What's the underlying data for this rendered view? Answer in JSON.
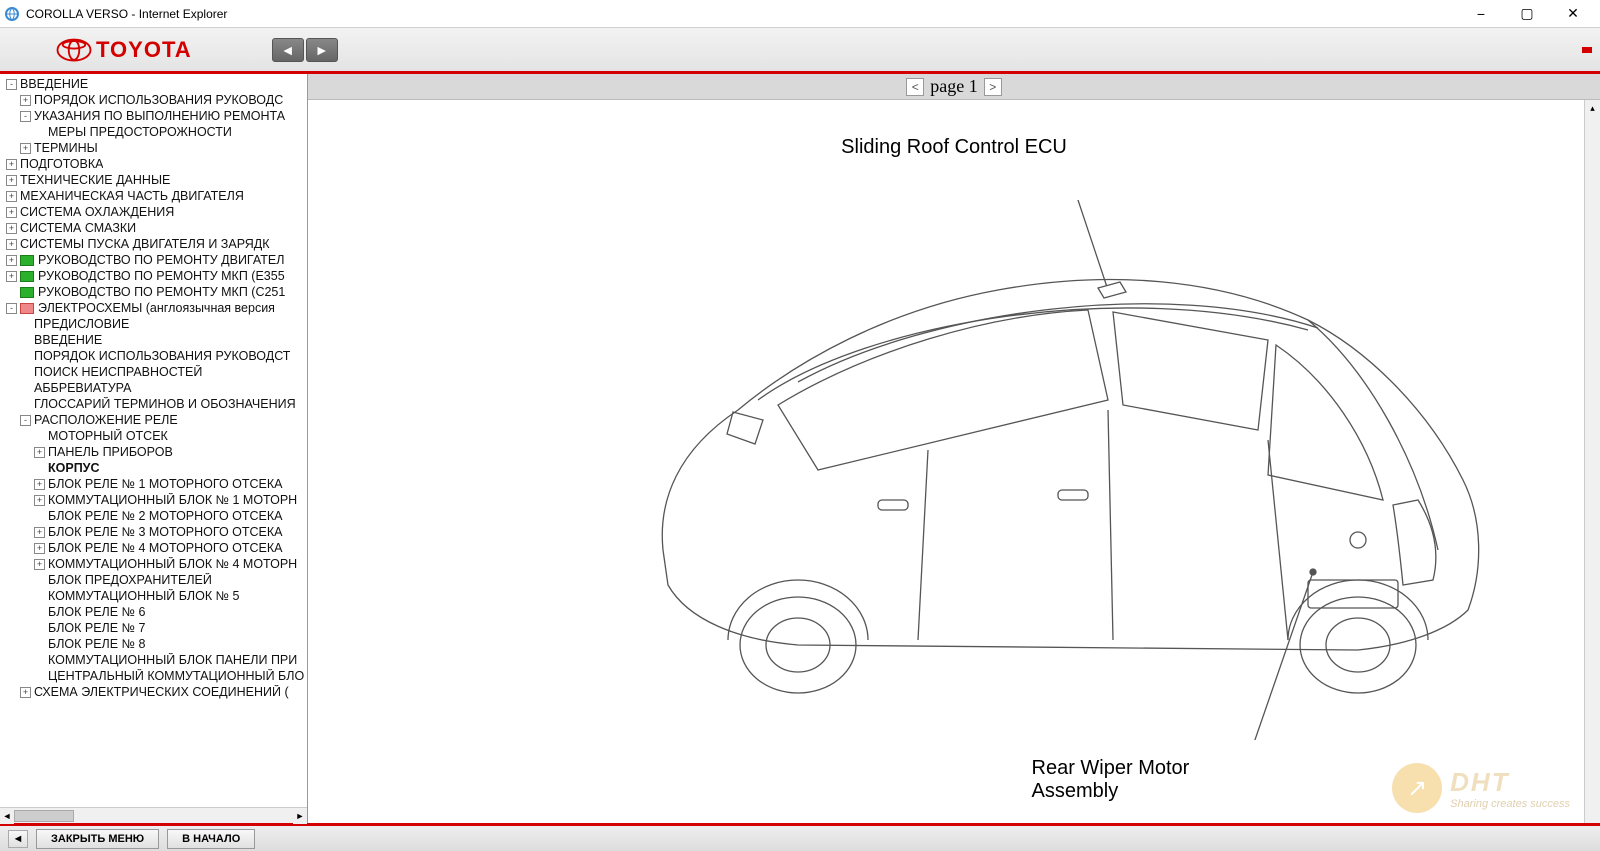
{
  "window": {
    "title": "COROLLA VERSO - Internet Explorer"
  },
  "brand": {
    "name": "TOYOTA"
  },
  "pager": {
    "label": "page 1",
    "prev": "<",
    "next": ">"
  },
  "diagram": {
    "callout_top": "Sliding Roof Control ECU",
    "callout_bottom_l1": "Rear Wiper Motor",
    "callout_bottom_l2": "Assembly",
    "stroke": "#555555",
    "label_fontsize": 20
  },
  "tree": [
    {
      "lvl": 0,
      "tog": "-",
      "label": "ВВЕДЕНИЕ"
    },
    {
      "lvl": 1,
      "tog": "+",
      "label": "ПОРЯДОК ИСПОЛЬЗОВАНИЯ РУКОВОДС"
    },
    {
      "lvl": 1,
      "tog": "-",
      "label": "УКАЗАНИЯ ПО ВЫПОЛНЕНИЮ РЕМОНТА"
    },
    {
      "lvl": 2,
      "tog": " ",
      "label": "МЕРЫ ПРЕДОСТОРОЖНОСТИ"
    },
    {
      "lvl": 1,
      "tog": "+",
      "label": "ТЕРМИНЫ"
    },
    {
      "lvl": 0,
      "tog": "+",
      "label": "ПОДГОТОВКА"
    },
    {
      "lvl": 0,
      "tog": "+",
      "label": "ТЕХНИЧЕСКИЕ ДАННЫЕ"
    },
    {
      "lvl": 0,
      "tog": "+",
      "label": "МЕХАНИЧЕСКАЯ ЧАСТЬ ДВИГАТЕЛЯ"
    },
    {
      "lvl": 0,
      "tog": "+",
      "label": "СИСТЕМА ОХЛАЖДЕНИЯ"
    },
    {
      "lvl": 0,
      "tog": "+",
      "label": "СИСТЕМА СМАЗКИ"
    },
    {
      "lvl": 0,
      "tog": "+",
      "label": "СИСТЕМЫ ПУСКА ДВИГАТЕЛЯ И ЗАРЯДК"
    },
    {
      "lvl": 0,
      "tog": "+",
      "icon": "green",
      "label": "РУКОВОДСТВО ПО РЕМОНТУ ДВИГАТЕЛ"
    },
    {
      "lvl": 0,
      "tog": "+",
      "icon": "green",
      "label": "РУКОВОДСТВО ПО РЕМОНТУ МКП (E355"
    },
    {
      "lvl": 0,
      "tog": " ",
      "icon": "green",
      "label": "РУКОВОДСТВО ПО РЕМОНТУ МКП (C251"
    },
    {
      "lvl": 0,
      "tog": "-",
      "icon": "red",
      "label": "ЭЛЕКТРОСХЕМЫ (англоязычная версия"
    },
    {
      "lvl": 1,
      "tog": " ",
      "label": "ПРЕДИСЛОВИЕ"
    },
    {
      "lvl": 1,
      "tog": " ",
      "label": "ВВЕДЕНИЕ"
    },
    {
      "lvl": 1,
      "tog": " ",
      "label": "ПОРЯДОК ИСПОЛЬЗОВАНИЯ РУКОВОДСТ"
    },
    {
      "lvl": 1,
      "tog": " ",
      "label": "ПОИСК НЕИСПРАВНОСТЕЙ"
    },
    {
      "lvl": 1,
      "tog": " ",
      "label": "АББРЕВИАТУРА"
    },
    {
      "lvl": 1,
      "tog": " ",
      "label": "ГЛОССАРИЙ ТЕРМИНОВ И ОБОЗНАЧЕНИЯ"
    },
    {
      "lvl": 1,
      "tog": "-",
      "label": "РАСПОЛОЖЕНИЕ РЕЛЕ"
    },
    {
      "lvl": 2,
      "tog": " ",
      "label": "МОТОРНЫЙ ОТСЕК"
    },
    {
      "lvl": 2,
      "tog": "+",
      "label": "ПАНЕЛЬ ПРИБОРОВ"
    },
    {
      "lvl": 2,
      "tog": " ",
      "bold": true,
      "label": "КОРПУС"
    },
    {
      "lvl": 2,
      "tog": "+",
      "label": "БЛОК РЕЛЕ № 1 МОТОРНОГО ОТСЕКА"
    },
    {
      "lvl": 2,
      "tog": "+",
      "label": "КОММУТАЦИОННЫЙ БЛОК № 1 МОТОРН"
    },
    {
      "lvl": 2,
      "tog": " ",
      "label": "БЛОК РЕЛЕ № 2 МОТОРНОГО ОТСЕКА"
    },
    {
      "lvl": 2,
      "tog": "+",
      "label": "БЛОК РЕЛЕ № 3 МОТОРНОГО ОТСЕКА"
    },
    {
      "lvl": 2,
      "tog": "+",
      "label": "БЛОК РЕЛЕ № 4 МОТОРНОГО ОТСЕКА"
    },
    {
      "lvl": 2,
      "tog": "+",
      "label": "КОММУТАЦИОННЫЙ БЛОК № 4 МОТОРН"
    },
    {
      "lvl": 2,
      "tog": " ",
      "label": "БЛОК ПРЕДОХРАНИТЕЛЕЙ"
    },
    {
      "lvl": 2,
      "tog": " ",
      "label": "КОММУТАЦИОННЫЙ БЛОК № 5"
    },
    {
      "lvl": 2,
      "tog": " ",
      "label": "БЛОК РЕЛЕ № 6"
    },
    {
      "lvl": 2,
      "tog": " ",
      "label": "БЛОК РЕЛЕ № 7"
    },
    {
      "lvl": 2,
      "tog": " ",
      "label": "БЛОК РЕЛЕ № 8"
    },
    {
      "lvl": 2,
      "tog": " ",
      "label": "КОММУТАЦИОННЫЙ БЛОК ПАНЕЛИ ПРИ"
    },
    {
      "lvl": 2,
      "tog": " ",
      "label": "ЦЕНТРАЛЬНЫЙ КОММУТАЦИОННЫЙ БЛО"
    },
    {
      "lvl": 1,
      "tog": "+",
      "label": "СХЕМА ЭЛЕКТРИЧЕСКИХ СОЕДИНЕНИЙ ("
    }
  ],
  "bottombar": {
    "close_menu": "ЗАКРЫТЬ МЕНЮ",
    "to_start": "В НАЧАЛО"
  },
  "watermark": {
    "text": "DHT",
    "sub": "Sharing creates success"
  },
  "colors": {
    "accent_red": "#d40000",
    "toolbar_bg": "#e8e8e8",
    "pager_bg": "#d9d9d9"
  }
}
